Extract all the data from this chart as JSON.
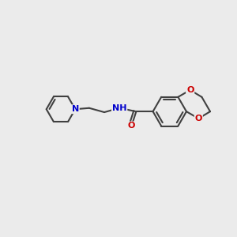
{
  "background_color": "#EBEBEB",
  "bond_color": "#404040",
  "bond_width": 1.5,
  "atom_colors": {
    "N": "#0000CC",
    "O": "#CC0000",
    "H": "#707070"
  },
  "font_size_N": 8,
  "font_size_O": 8,
  "font_size_NH": 8
}
